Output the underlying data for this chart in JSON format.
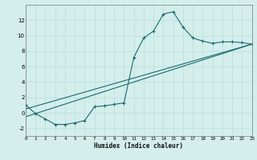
{
  "xlabel": "Humidex (Indice chaleur)",
  "background_color": "#d4eeec",
  "grid_color": "#b8dedd",
  "line_color": "#1a6b6b",
  "xlim": [
    0,
    23
  ],
  "ylim": [
    -3,
    14
  ],
  "xticks": [
    0,
    1,
    2,
    3,
    4,
    5,
    6,
    7,
    8,
    9,
    10,
    11,
    12,
    13,
    14,
    15,
    16,
    17,
    18,
    19,
    20,
    21,
    22,
    23
  ],
  "yticks": [
    -2,
    0,
    2,
    4,
    6,
    8,
    10,
    12
  ],
  "series1_x": [
    0,
    1,
    2,
    3,
    4,
    5,
    6,
    7,
    8,
    9,
    10,
    11,
    12,
    13,
    14,
    15,
    16,
    17,
    18,
    19,
    20,
    21,
    22,
    23
  ],
  "series1_y": [
    1,
    -0.1,
    -0.8,
    -1.5,
    -1.5,
    -1.3,
    -1.0,
    0.8,
    0.9,
    1.1,
    1.3,
    7.2,
    9.7,
    10.6,
    12.8,
    13.1,
    11.1,
    9.7,
    9.3,
    9.0,
    9.2,
    9.2,
    9.1,
    8.9
  ],
  "series2_x": [
    0,
    23
  ],
  "series2_y": [
    -0.5,
    8.9
  ],
  "series3_x": [
    0,
    23
  ],
  "series3_y": [
    0.5,
    8.9
  ]
}
